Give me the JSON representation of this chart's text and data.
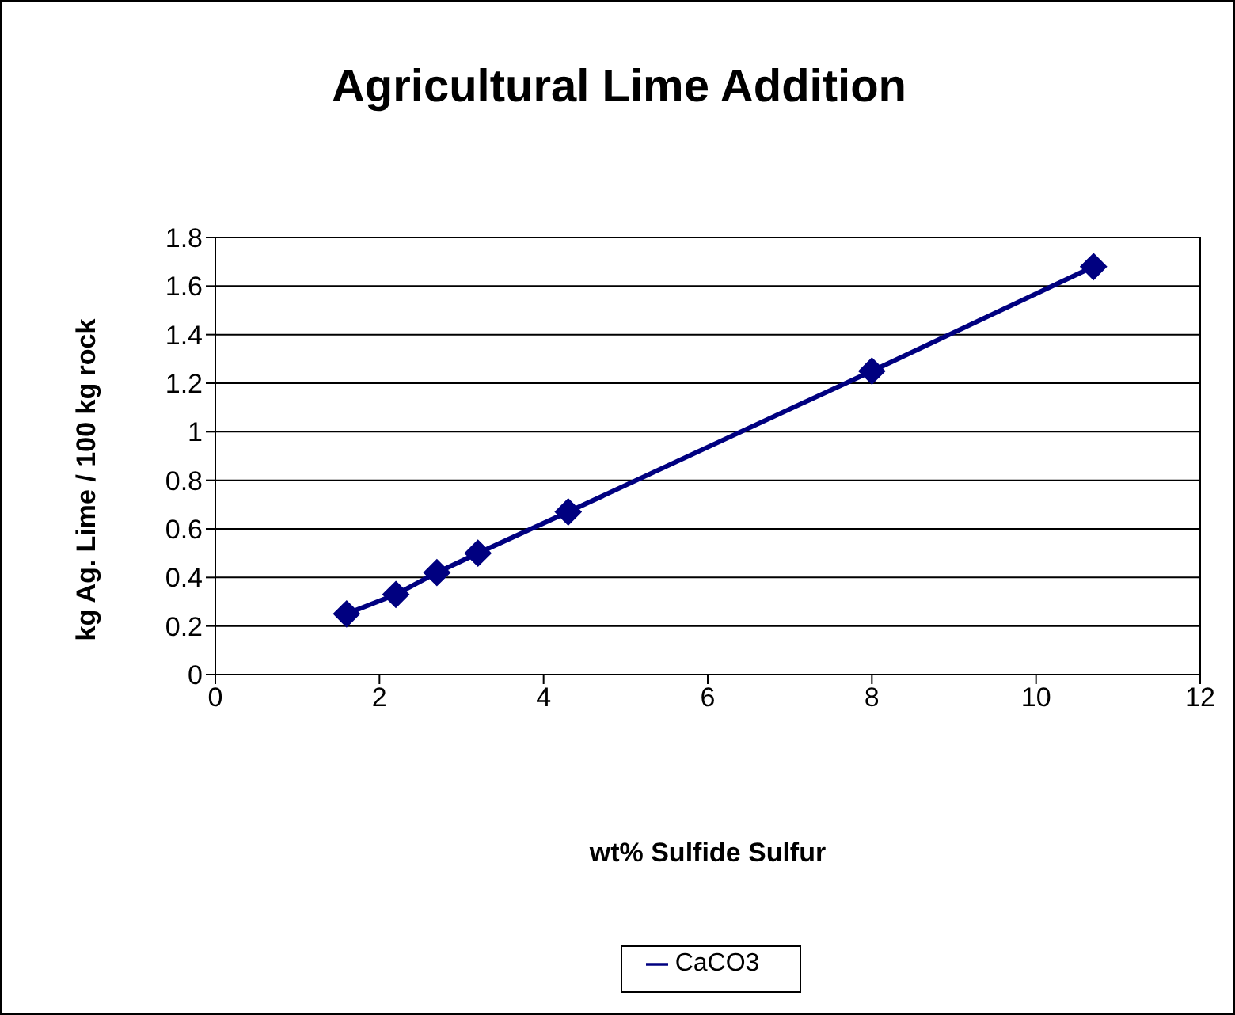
{
  "chart_data": {
    "type": "line",
    "title": "Agricultural Lime Addition",
    "xlabel": "wt% Sulfide Sulfur",
    "ylabel": "kg Ag. Lime / 100 kg rock",
    "x": [
      1.6,
      2.2,
      2.7,
      3.2,
      4.3,
      8.0,
      10.7
    ],
    "series": [
      {
        "name": "CaCO3",
        "color": "#000080",
        "values": [
          0.25,
          0.33,
          0.42,
          0.5,
          0.67,
          1.25,
          1.68
        ]
      }
    ],
    "xlim": [
      0,
      12
    ],
    "xticks": [
      0,
      2,
      4,
      6,
      8,
      10,
      12
    ],
    "ylim": [
      0,
      1.8
    ],
    "yticks": [
      0,
      0.2,
      0.4,
      0.6,
      0.8,
      1,
      1.2,
      1.4,
      1.6,
      1.8
    ],
    "grid": "y",
    "legend": "bottom",
    "marker": "diamond",
    "line_style": "solid"
  }
}
